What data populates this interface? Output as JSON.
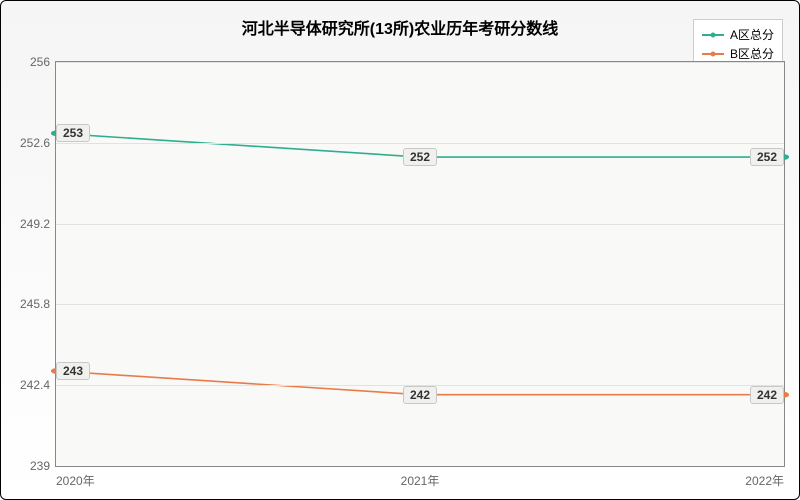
{
  "chart": {
    "type": "line",
    "title": "河北半导体研究所(13所)农业历年考研分数线",
    "title_fontsize": 16,
    "background_gradient": [
      "#f5f5f5",
      "#ffffff"
    ],
    "plot_background": "#f9f9f7",
    "grid_color": "#e2e2e2",
    "axis_color": "#888888",
    "label_color": "#666666",
    "label_fontsize": 12,
    "x": {
      "categories": [
        "2020年",
        "2021年",
        "2022年"
      ],
      "positions_pct": [
        0,
        50,
        100
      ]
    },
    "y": {
      "min": 239,
      "max": 256,
      "ticks": [
        239,
        242.4,
        245.8,
        249.2,
        252.6,
        256
      ],
      "tick_labels": [
        "239",
        "242.4",
        "245.8",
        "249.2",
        "252.6",
        "256"
      ]
    },
    "series": [
      {
        "name": "A区总分",
        "color": "#2fae8e",
        "line_width": 1.6,
        "marker": {
          "shape": "circle",
          "size": 5,
          "fill": "#2fae8e"
        },
        "values": [
          253,
          252,
          252
        ],
        "point_labels": [
          "253",
          "252",
          "252"
        ]
      },
      {
        "name": "B区总分",
        "color": "#e87b4a",
        "line_width": 1.6,
        "marker": {
          "shape": "circle",
          "size": 5,
          "fill": "#e87b4a"
        },
        "values": [
          243,
          242,
          242
        ],
        "point_labels": [
          "243",
          "242",
          "242"
        ]
      }
    ],
    "legend": {
      "position": "top-right",
      "border_color": "#cccccc",
      "background": "#ffffff"
    }
  }
}
